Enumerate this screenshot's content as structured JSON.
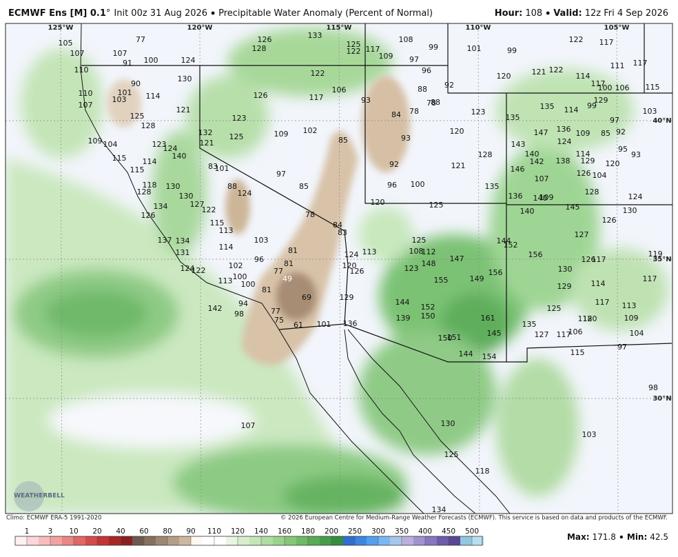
{
  "header": {
    "model": "ECMWF Ens [M] 0.1",
    "degree": "°",
    "init": "Init 00z 31 Aug 2026",
    "product": "Precipitable Water Anomaly (Percent of Normal)",
    "hour_label": "Hour:",
    "hour": "108",
    "valid_label": "Valid:",
    "valid": "12z Fri 4 Sep 2026"
  },
  "map": {
    "geo_labels": [
      "125°W",
      "120°W",
      "115°W",
      "110°W",
      "105°W",
      "40°N",
      "35°N",
      "30°N"
    ],
    "values": [
      77,
      105,
      107,
      107,
      91,
      100,
      124,
      126,
      128,
      133,
      108,
      125,
      122,
      117,
      109,
      99,
      97,
      96,
      101,
      99,
      122,
      117,
      111,
      117,
      110,
      130,
      90,
      122,
      106,
      117,
      126,
      88,
      92,
      120,
      121,
      122,
      114,
      117,
      100,
      106,
      115,
      110,
      101,
      103,
      114,
      107,
      121,
      93,
      84,
      78,
      78,
      88,
      123,
      135,
      135,
      114,
      129,
      99,
      103,
      97,
      125,
      128,
      123,
      132,
      125,
      109,
      102,
      85,
      93,
      120,
      147,
      136,
      109,
      85,
      92,
      109,
      104,
      123,
      124,
      121,
      143,
      124,
      95,
      93,
      115,
      114,
      140,
      140,
      142,
      138,
      114,
      129,
      120,
      92,
      121,
      128,
      115,
      118,
      128,
      130,
      83,
      101,
      97,
      146,
      126,
      104,
      107,
      96,
      100,
      85,
      88,
      124,
      130,
      127,
      122,
      134,
      135,
      136,
      140,
      109,
      128,
      124,
      120,
      125,
      145,
      140,
      130,
      126,
      78,
      84,
      83,
      115,
      113,
      126,
      127,
      125,
      108,
      112,
      144,
      152,
      137,
      134,
      103,
      114,
      131,
      113,
      124,
      156,
      126,
      117,
      119,
      81,
      96,
      81,
      147,
      148,
      123,
      120,
      126,
      130,
      102,
      77,
      124,
      122,
      156,
      100,
      113,
      49,
      155,
      149,
      129,
      114,
      117,
      100,
      81,
      69,
      129,
      144,
      152,
      117,
      113,
      142,
      94,
      77,
      150,
      139,
      161,
      125,
      118,
      120,
      109,
      98,
      75,
      61,
      101,
      136,
      135,
      145,
      127,
      117,
      106,
      104,
      150,
      151,
      97,
      115,
      144,
      154,
      98,
      107,
      130,
      103,
      125,
      118,
      134
    ]
  },
  "logo": "WEATHERBELL",
  "footer": {
    "climo": "Climo: ECMWF ERA-5 1991-2020",
    "copyright": "© 2026 European Centre for Medium-Range Weather Forecasts (ECMWF). This service is based on data and products of the ECMWF."
  },
  "colorbar": {
    "labels": [
      1,
      3,
      10,
      20,
      40,
      60,
      80,
      90,
      110,
      120,
      140,
      160,
      180,
      200,
      250,
      300,
      350,
      400,
      450,
      500
    ]
  },
  "stats": {
    "max_label": "Max:",
    "max": 171.8,
    "min_label": "Min:",
    "min": 42.5
  }
}
